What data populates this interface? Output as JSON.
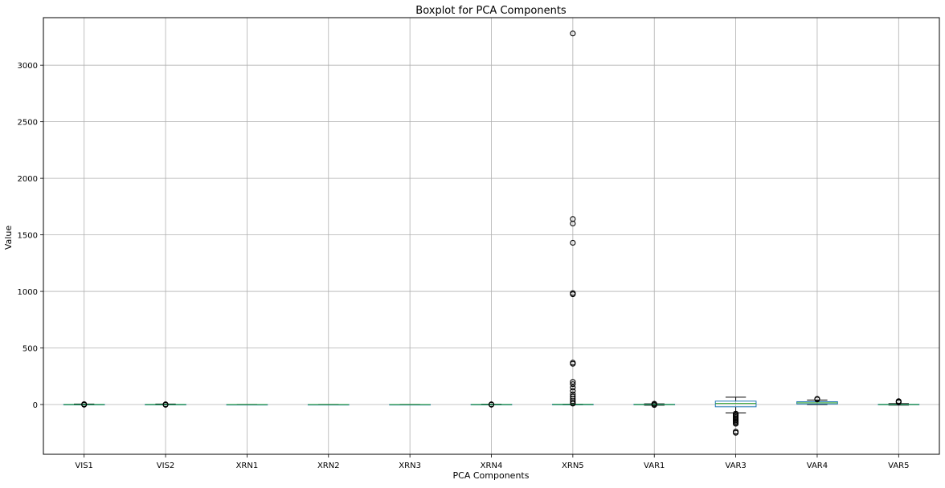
{
  "chart_data": {
    "type": "box",
    "title": "Boxplot for PCA Components",
    "xlabel": "PCA Components",
    "ylabel": "Value",
    "ylim": [
      -440,
      3420
    ],
    "yticks": [
      0,
      500,
      1000,
      1500,
      2000,
      2500,
      3000
    ],
    "grid": true,
    "categories": [
      "VIS1",
      "VIS2",
      "XRN1",
      "XRN2",
      "XRN3",
      "XRN4",
      "XRN5",
      "VAR1",
      "VAR3",
      "VAR4",
      "VAR5"
    ],
    "boxes": [
      {
        "name": "VIS1",
        "whislo": -4,
        "q1": -1,
        "med": 0,
        "q3": 1,
        "whishi": 4,
        "fliers": [
          -2,
          3
        ]
      },
      {
        "name": "VIS2",
        "whislo": -4,
        "q1": -1,
        "med": 0,
        "q3": 1,
        "whishi": 4,
        "fliers": [
          -3,
          2
        ]
      },
      {
        "name": "XRN1",
        "whislo": -1,
        "q1": 0,
        "med": 0,
        "q3": 0,
        "whishi": 1,
        "fliers": []
      },
      {
        "name": "XRN2",
        "whislo": -1,
        "q1": 0,
        "med": 0,
        "q3": 0,
        "whishi": 1,
        "fliers": []
      },
      {
        "name": "XRN3",
        "whislo": -1,
        "q1": 0,
        "med": 0,
        "q3": 0,
        "whishi": 1,
        "fliers": []
      },
      {
        "name": "XRN4",
        "whislo": -3,
        "q1": -1,
        "med": 0,
        "q3": 1,
        "whishi": 3,
        "fliers": [
          -2,
          2
        ]
      },
      {
        "name": "XRN5",
        "whislo": -2,
        "q1": 0,
        "med": 1,
        "q3": 2,
        "whishi": 3,
        "fliers": [
          3280,
          1640,
          1600,
          1430,
          985,
          975,
          370,
          360,
          200,
          180,
          150,
          120,
          90,
          70,
          50,
          30,
          15,
          8
        ]
      },
      {
        "name": "VAR1",
        "whislo": -6,
        "q1": -2,
        "med": 0,
        "q3": 2,
        "whishi": 6,
        "fliers": [
          -4,
          4,
          7
        ]
      },
      {
        "name": "VAR3",
        "whislo": -75,
        "q1": -20,
        "med": 10,
        "q3": 30,
        "whishi": 65,
        "fliers": [
          -80,
          -90,
          -100,
          -110,
          -120,
          -130,
          -140,
          -150,
          -160,
          -170,
          -240,
          -250
        ]
      },
      {
        "name": "VAR4",
        "whislo": 0,
        "q1": 5,
        "med": 15,
        "q3": 25,
        "whishi": 40,
        "fliers": [
          45,
          50
        ]
      },
      {
        "name": "VAR5",
        "whislo": -5,
        "q1": -2,
        "med": 0,
        "q3": 2,
        "whishi": 8,
        "fliers": [
          20,
          25,
          30
        ]
      }
    ]
  }
}
